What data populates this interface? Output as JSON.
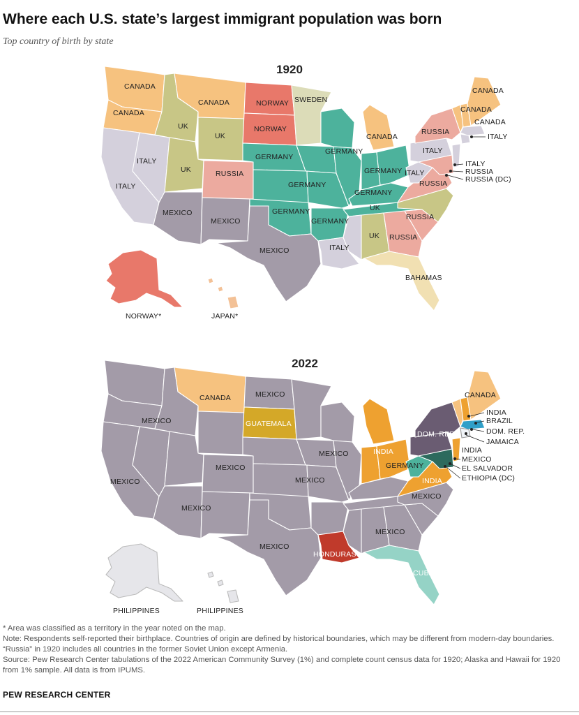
{
  "title": "Where each U.S. state’s largest immigrant population was born",
  "subtitle": "Top country of birth by state",
  "colors": {
    "canada": "#f6c27f",
    "norway": "#e8786a",
    "sweden": "#dcdcb8",
    "uk": "#c8c686",
    "germany": "#4db29c",
    "russia": "#ecaa9f",
    "italy": "#d4d0dc",
    "mexico": "#a39ba8",
    "bahamas": "#f1e0b2",
    "japan": "#f3c196",
    "philippines": "#e6e6ea",
    "india": "#eea130",
    "guatemala": "#d4a828",
    "honduras": "#c03a2b",
    "cuba": "#95d3c6",
    "dom_rep": "#6a5c72",
    "brazil": "#2f9fc8",
    "el_salvador": "#2c6a5d",
    "ethiopia": "#1f5050",
    "jamaica": "#f0f4f8"
  },
  "map1920": {
    "year": "1920",
    "labels": {
      "canada_wa": "CANADA",
      "canada_or": "CANADA",
      "canada_mt": "CANADA",
      "norway_nd": "NORWAY",
      "norway_sd": "NORWAY",
      "sweden_mn": "SWEDEN",
      "uk_id": "UK",
      "uk_wy": "UK",
      "uk_ut": "UK",
      "italy_nv": "ITALY",
      "italy_ca": "ITALY",
      "russia_co": "RUSSIA",
      "germany_ne": "GERMANY",
      "germany_ia": "GERMANY",
      "germany_ks": "GERMANY",
      "germany_wi": "GERMANY",
      "germany_il": "GERMANY",
      "germany_oh": "GERMANY",
      "germany_ky": "GERMANY",
      "germany_ok": "GERMANY",
      "germany_ar": "GERMANY",
      "canada_mi": "CANADA",
      "russia_ny": "RUSSIA",
      "italy_pa": "ITALY",
      "italy_wv": "ITALY",
      "russia_va": "RUSSIA",
      "canada_me": "CANADA",
      "canada_vt": "CANADA",
      "italy_ri": "ITALY",
      "italy_de": "ITALY",
      "russia_md": "RUSSIA",
      "russia_dc": "RUSSIA (DC)",
      "uk_nc": "UK",
      "russia_sc": "RUSSIA",
      "russia_ga": "RUSSIA",
      "uk_al": "UK",
      "italy_la": "ITALY",
      "mexico_az": "MEXICO",
      "mexico_nm": "MEXICO",
      "mexico_tx": "MEXICO",
      "bahamas_fl": "BAHAMAS",
      "norway_ak": "NORWAY*",
      "japan_hi": "JAPAN*"
    }
  },
  "map2022": {
    "year": "2022",
    "labels": {
      "canada_mt": "CANADA",
      "mexico_nd": "MEXICO",
      "mexico_id": "MEXICO",
      "guatemala_sd": "GUATEMALA",
      "mexico_nv": "MEXICO",
      "mexico_ca": "MEXICO",
      "mexico_az": "MEXICO",
      "mexico_tx": "MEXICO",
      "mexico_ks": "MEXICO",
      "mexico_il": "MEXICO",
      "india_oh": "INDIA",
      "germany_wv": "GERMANY",
      "india_va": "INDIA",
      "mexico_nc": "MEXICO",
      "mexico_ga": "MEXICO",
      "honduras_la": "HONDURAS",
      "cuba_fl": "CUBA",
      "domrep_ny": "DOM. REP.",
      "canada_me": "CANADA",
      "india_nh": "INDIA",
      "brazil_ma": "BRAZIL",
      "domrep_ri": "DOM. REP.",
      "jamaica_ct": "JAMAICA",
      "india_nj": "INDIA",
      "mexico_de": "MEXICO",
      "elsalvador_md": "EL SALVADOR",
      "ethiopia_dc": "ETHIOPIA (DC)",
      "philippines_ak": "PHILIPPINES",
      "philippines_hi": "PHILIPPINES"
    }
  },
  "notes": [
    "* Area was classified as a territory in the year noted on the map.",
    "Note: Respondents self-reported their birthplace. Countries of origin are defined by historical boundaries, which may be different from modern-day boundaries. “Russia” in 1920 includes all countries in the former Soviet Union except Armenia.",
    "Source: Pew Research Center tabulations of the 2022 American Community Survey (1%) and complete count census data for 1920; Alaska and Hawaii for 1920 from 1% sample. All data is from IPUMS."
  ],
  "brand": "PEW RESEARCH CENTER"
}
